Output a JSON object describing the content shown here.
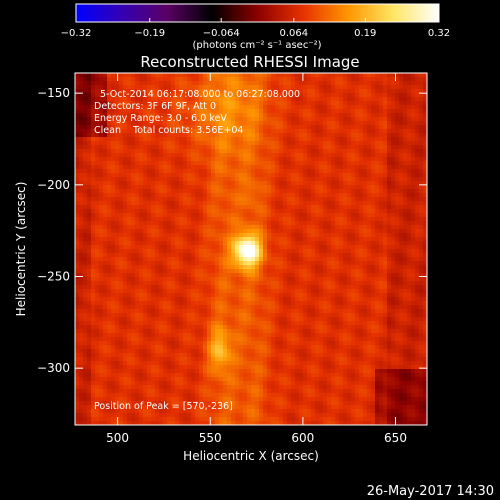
{
  "chart_data": {
    "type": "heatmap",
    "title": "Reconstructed RHESSI Image",
    "xlabel": "Heliocentric X (arcsec)",
    "ylabel": "Heliocentric Y (arcsec)",
    "xlim": [
      477,
      667
    ],
    "ylim": [
      -331,
      -139
    ],
    "x_ticks": [
      500,
      550,
      600,
      650
    ],
    "y_ticks": [
      -150,
      -200,
      -250,
      -300
    ],
    "colorbar": {
      "range": [
        -0.32,
        0.32
      ],
      "tick_values": [
        -0.32,
        -0.19,
        -0.064,
        0.064,
        0.19,
        0.32
      ],
      "tick_labels": [
        "-0.32",
        "-0.19",
        "-0.064",
        "0.064",
        "0.19",
        "0.32"
      ],
      "unit_label": "(photons cm⁻² s⁻¹ asec⁻²)",
      "colormap": [
        "#0000ff",
        "#3300b4",
        "#5a0064",
        "#000000",
        "#8c0000",
        "#e63200",
        "#ff9600",
        "#ffe664",
        "#ffffff"
      ]
    },
    "annotations": {
      "date_line": "5-Oct-2014 06:17:08.000 to 06:27:08.000",
      "detectors_line": "Detectors: 3F 6F 9F, Att 0",
      "energy_line": "Energy Range: 3.0 - 6.0 keV",
      "clean_line": "Clean    Total counts: 3.56E+04",
      "peak_line": "Position of Peak = [570,-236]"
    },
    "peak": {
      "x": 570,
      "y": -236,
      "value": 0.32
    },
    "emission_sources": [
      {
        "x": 570,
        "y": -236,
        "value": 0.32,
        "sigma_x": 5,
        "sigma_y": 6
      },
      {
        "x": 555,
        "y": -290,
        "value": 0.17,
        "sigma_x": 4,
        "sigma_y": 8
      },
      {
        "x": 572,
        "y": -205,
        "value": 0.1,
        "sigma_x": 3,
        "sigma_y": 4
      },
      {
        "x": 555,
        "y": -160,
        "value": 0.12,
        "sigma_x": 18,
        "sigma_y": 16
      }
    ],
    "vertical_ridges_x": [
      557,
      573
    ],
    "timestamp": "26-May-2017 14:30"
  }
}
